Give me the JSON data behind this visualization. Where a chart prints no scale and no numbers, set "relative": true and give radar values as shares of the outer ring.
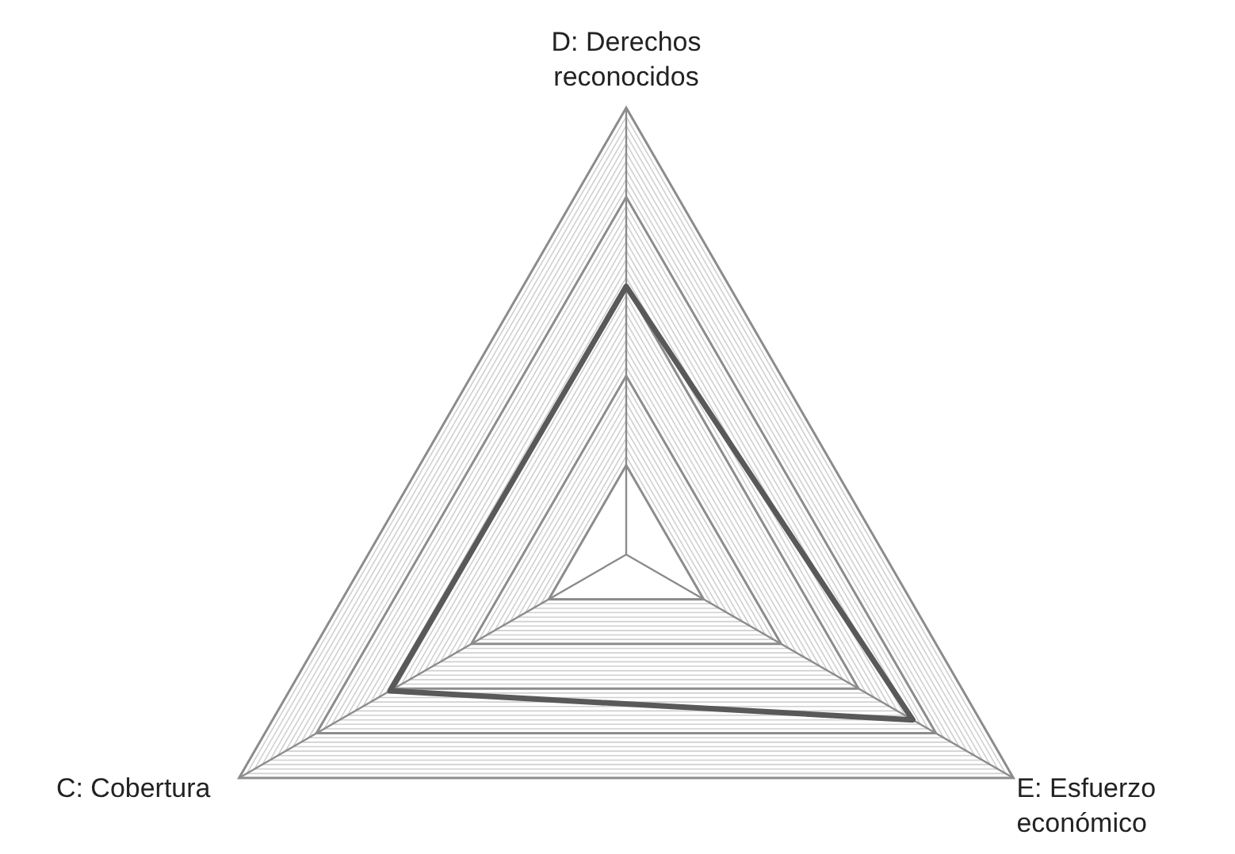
{
  "chart_data": {
    "type": "radar",
    "relative": true,
    "grid": true,
    "categories": [
      "D: Derechos reconocidos",
      "E: Esfuerzo económico",
      "C: Cobertura"
    ],
    "series": [
      {
        "color": "#595959",
        "values": [
          0.6,
          0.74,
          0.61
        ]
      }
    ]
  }
}
